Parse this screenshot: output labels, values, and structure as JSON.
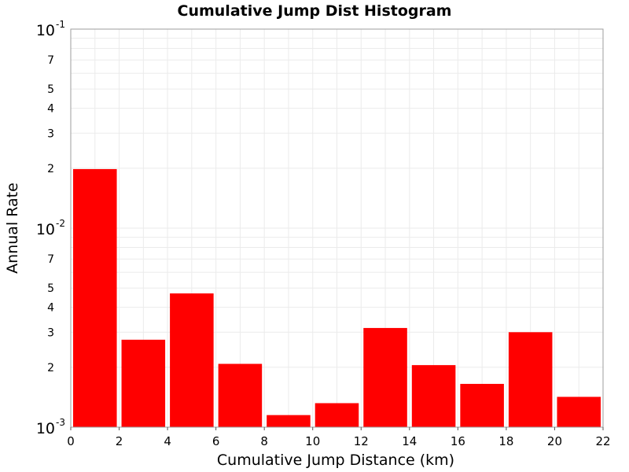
{
  "chart_data": {
    "type": "bar",
    "title": "Cumulative Jump Dist Histogram",
    "xlabel": "Cumulative Jump Distance (km)",
    "ylabel": "Annual Rate",
    "xlim": [
      0,
      22
    ],
    "ylim": [
      0.001,
      0.1
    ],
    "y_scale": "log",
    "grid": true,
    "bar_color": "#ff0000",
    "bin_width": 2,
    "x_ticks": [
      "0",
      "2",
      "4",
      "6",
      "8",
      "10",
      "12",
      "14",
      "16",
      "18",
      "20",
      "22"
    ],
    "y_major_ticks": [
      {
        "value": 0.1,
        "base": "10",
        "exp": "-1"
      },
      {
        "value": 0.01,
        "base": "10",
        "exp": "-2"
      },
      {
        "value": 0.001,
        "base": "10",
        "exp": "-3"
      }
    ],
    "y_minor_labels": [
      {
        "value": 0.07,
        "label": "7"
      },
      {
        "value": 0.05,
        "label": "5"
      },
      {
        "value": 0.04,
        "label": "4"
      },
      {
        "value": 0.03,
        "label": "3"
      },
      {
        "value": 0.02,
        "label": "2"
      },
      {
        "value": 0.007,
        "label": "7"
      },
      {
        "value": 0.005,
        "label": "5"
      },
      {
        "value": 0.004,
        "label": "4"
      },
      {
        "value": 0.003,
        "label": "3"
      },
      {
        "value": 0.002,
        "label": "2"
      }
    ],
    "bins": [
      {
        "x_start": 0,
        "x_end": 2,
        "value": 0.0198
      },
      {
        "x_start": 2,
        "x_end": 4,
        "value": 0.00275
      },
      {
        "x_start": 4,
        "x_end": 6,
        "value": 0.0047
      },
      {
        "x_start": 6,
        "x_end": 8,
        "value": 0.00208
      },
      {
        "x_start": 8,
        "x_end": 10,
        "value": 0.00115
      },
      {
        "x_start": 10,
        "x_end": 12,
        "value": 0.00132
      },
      {
        "x_start": 12,
        "x_end": 14,
        "value": 0.00315
      },
      {
        "x_start": 14,
        "x_end": 16,
        "value": 0.00205
      },
      {
        "x_start": 16,
        "x_end": 18,
        "value": 0.00165
      },
      {
        "x_start": 18,
        "x_end": 20,
        "value": 0.003
      },
      {
        "x_start": 20,
        "x_end": 22,
        "value": 0.00142
      }
    ]
  }
}
